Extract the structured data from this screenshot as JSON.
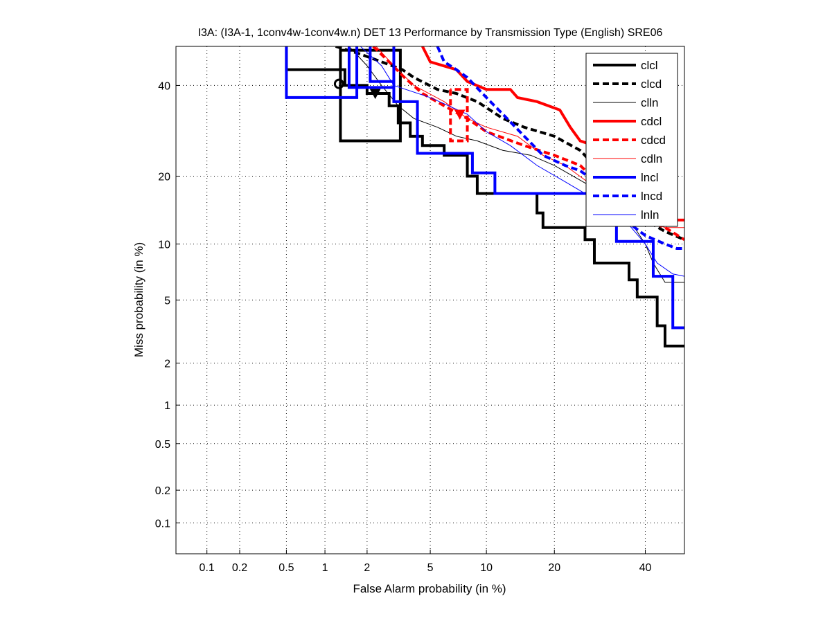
{
  "chart_data": {
    "type": "line",
    "scale": "normal-deviate (DET)",
    "title": "I3A: (I3A-1, 1conv4w-1conv4w.n) DET 13 Performance by Transmission Type (English) SRE06",
    "xlabel": "False Alarm probability (in %)",
    "ylabel": "Miss probability (in %)",
    "xlim": [
      0.05,
      50
    ],
    "ylim": [
      0.05,
      50
    ],
    "grid": true,
    "legend_position": "top-right",
    "xticks": [
      0.1,
      0.2,
      0.5,
      1,
      2,
      5,
      10,
      20,
      40
    ],
    "xtick_labels": [
      "0.1",
      "0.2",
      "0.5",
      "1",
      "2",
      "5",
      "10",
      "20",
      "40"
    ],
    "yticks": [
      0.1,
      0.2,
      0.5,
      1,
      2,
      5,
      10,
      20,
      40
    ],
    "ytick_labels": [
      "0.1",
      "0.2",
      "0.5",
      "1",
      "2",
      "5",
      "10",
      "20",
      "40"
    ],
    "series": [
      {
        "name": "clcl",
        "color": "#000000",
        "style": "solid",
        "weight": "thick",
        "segments": [
          [
            [
              0.5,
              50
            ],
            [
              0.5,
              44
            ],
            [
              1.4,
              44
            ],
            [
              1.4,
              40
            ],
            [
              2,
              40
            ],
            [
              2,
              38
            ],
            [
              2.8,
              38
            ],
            [
              2.8,
              35
            ],
            [
              3.2,
              35
            ],
            [
              3.2,
              31
            ],
            [
              3.8,
              31
            ],
            [
              3.8,
              28
            ],
            [
              4.5,
              28
            ],
            [
              4.5,
              26
            ],
            [
              6,
              26
            ],
            [
              6,
              24
            ],
            [
              8,
              24
            ],
            [
              8,
              20
            ],
            [
              9,
              20
            ],
            [
              9,
              17
            ],
            [
              17,
              17
            ],
            [
              17,
              14
            ],
            [
              18,
              14
            ],
            [
              18,
              12
            ],
            [
              26,
              12
            ],
            [
              26,
              10.5
            ],
            [
              28,
              10.5
            ],
            [
              28,
              8
            ],
            [
              36,
              8
            ],
            [
              36,
              6.5
            ],
            [
              38,
              6.5
            ],
            [
              38,
              5.2
            ],
            [
              43,
              5.2
            ],
            [
              43,
              3.5
            ],
            [
              45,
              3.5
            ],
            [
              45,
              2.6
            ],
            [
              50,
              2.6
            ]
          ],
          [
            [
              1.3,
              50
            ],
            [
              1.3,
              27
            ],
            [
              3.3,
              27
            ],
            [
              3.3,
              49
            ],
            [
              1.3,
              49
            ]
          ]
        ]
      },
      {
        "name": "clcd",
        "color": "#000000",
        "style": "dashed",
        "weight": "thick",
        "segments": [
          [
            [
              1.2,
              50
            ],
            [
              1.8,
              48
            ],
            [
              2.5,
              46
            ],
            [
              3.4,
              44
            ],
            [
              4,
              42
            ],
            [
              5.5,
              39
            ],
            [
              7,
              38
            ],
            [
              9,
              36
            ],
            [
              12,
              32
            ],
            [
              15,
              30
            ],
            [
              20,
              28
            ],
            [
              25,
              25
            ],
            [
              28,
              22
            ],
            [
              33,
              18
            ],
            [
              40,
              13
            ],
            [
              45,
              11.5
            ],
            [
              50,
              10.5
            ]
          ]
        ]
      },
      {
        "name": "clln",
        "color": "#000000",
        "style": "solid",
        "weight": "thin",
        "segments": [
          [
            [
              1.5,
              50
            ],
            [
              2,
              45
            ],
            [
              2.5,
              40
            ],
            [
              3.2,
              35
            ],
            [
              4,
              32
            ],
            [
              5.5,
              30
            ],
            [
              7,
              28
            ],
            [
              9,
              27
            ],
            [
              12,
              25
            ],
            [
              16,
              24
            ],
            [
              20,
              22
            ],
            [
              30,
              17
            ],
            [
              35,
              14
            ],
            [
              40,
              10
            ],
            [
              42,
              8
            ],
            [
              45,
              6.3
            ],
            [
              50,
              6.3
            ]
          ]
        ]
      },
      {
        "name": "cdcl",
        "color": "#ff0000",
        "style": "solid",
        "weight": "thick",
        "segments": [
          [
            [
              4.5,
              50
            ],
            [
              5,
              46
            ],
            [
              7,
              44
            ],
            [
              8,
              41
            ],
            [
              10,
              39
            ],
            [
              13,
              39
            ],
            [
              14,
              37
            ],
            [
              17,
              36
            ],
            [
              21,
              34
            ],
            [
              23,
              30
            ],
            [
              25,
              27
            ],
            [
              28,
              26
            ],
            [
              35,
              24
            ],
            [
              37,
              22
            ],
            [
              45,
              17
            ],
            [
              47,
              13
            ],
            [
              50,
              13
            ]
          ]
        ]
      },
      {
        "name": "cdcd",
        "color": "#ff0000",
        "style": "dashed",
        "weight": "thick",
        "segments": [
          [
            [
              2.2,
              50
            ],
            [
              2.8,
              46
            ],
            [
              3.5,
              42
            ],
            [
              4.5,
              38
            ],
            [
              6,
              35
            ],
            [
              8,
              32
            ],
            [
              10,
              29
            ],
            [
              15,
              26
            ],
            [
              20,
              24
            ],
            [
              25,
              22
            ],
            [
              30,
              18
            ],
            [
              40,
              13
            ],
            [
              45,
              12
            ],
            [
              50,
              10.5
            ]
          ],
          [
            [
              6.5,
              39
            ],
            [
              6.5,
              27
            ],
            [
              8,
              27
            ],
            [
              8,
              39
            ],
            [
              6.5,
              39
            ]
          ]
        ]
      },
      {
        "name": "cdln",
        "color": "#ff0000",
        "style": "solid",
        "weight": "thin",
        "segments": [
          [
            [
              2.3,
              50
            ],
            [
              3,
              45
            ],
            [
              4,
              40
            ],
            [
              6,
              36
            ],
            [
              8,
              32
            ],
            [
              10,
              30
            ],
            [
              14,
              28
            ],
            [
              18,
              24
            ],
            [
              22,
              22
            ],
            [
              30,
              17
            ],
            [
              40,
              13
            ],
            [
              45,
              12
            ],
            [
              50,
              12
            ]
          ]
        ]
      },
      {
        "name": "lncl",
        "color": "#0000ff",
        "style": "solid",
        "weight": "thick",
        "segments": [
          [
            [
              0.5,
              50
            ],
            [
              0.5,
              37
            ],
            [
              1.7,
              37
            ],
            [
              1.7,
              50
            ]
          ],
          [
            [
              1.5,
              50
            ],
            [
              1.5,
              39.5
            ],
            [
              3.0,
              39.5
            ],
            [
              3.0,
              50
            ]
          ],
          [
            [
              2.1,
              50
            ],
            [
              2.1,
              41
            ],
            [
              3.0,
              41
            ],
            [
              3.0,
              36
            ],
            [
              4.2,
              36
            ],
            [
              4.2,
              24.4
            ],
            [
              8.5,
              24.4
            ],
            [
              8.5,
              20.6
            ],
            [
              11,
              20.6
            ],
            [
              11,
              17
            ],
            [
              33,
              17
            ],
            [
              33,
              10.3
            ],
            [
              42,
              10.3
            ],
            [
              42,
              6.8
            ],
            [
              47,
              6.8
            ],
            [
              47,
              3.4
            ],
            [
              50,
              3.4
            ]
          ]
        ]
      },
      {
        "name": "lncd",
        "color": "#0000ff",
        "style": "dashed",
        "weight": "thick",
        "segments": [
          [
            [
              5.5,
              50
            ],
            [
              6,
              46
            ],
            [
              7,
              44
            ],
            [
              8,
              42
            ],
            [
              10,
              37
            ],
            [
              12,
              33
            ],
            [
              15,
              28
            ],
            [
              18,
              24
            ],
            [
              22,
              22
            ],
            [
              25,
              21
            ],
            [
              30,
              18
            ],
            [
              35,
              13
            ],
            [
              40,
              11
            ],
            [
              45,
              10
            ],
            [
              48,
              9.5
            ],
            [
              50,
              9.5
            ]
          ]
        ]
      },
      {
        "name": "lnln",
        "color": "#0000ff",
        "style": "solid",
        "weight": "thin",
        "segments": [
          [
            [
              1.8,
              50
            ],
            [
              2.5,
              45
            ],
            [
              3,
              40
            ],
            [
              5,
              37
            ],
            [
              8,
              33
            ],
            [
              10,
              29
            ],
            [
              13,
              26
            ],
            [
              17,
              22
            ],
            [
              22,
              19
            ],
            [
              26,
              17
            ],
            [
              35,
              13
            ],
            [
              40,
              10
            ],
            [
              43,
              8
            ],
            [
              47,
              7
            ],
            [
              50,
              6.8
            ]
          ]
        ]
      }
    ],
    "markers": [
      {
        "name": "clcl-min-dcf",
        "shape": "circle",
        "color": "#000000",
        "x": 1.27,
        "y": 40.4
      },
      {
        "name": "clcl-act-dcf",
        "shape": "triangle",
        "color": "#000000",
        "x": 2.27,
        "y": 38
      },
      {
        "name": "cdcd-act-dcf",
        "shape": "triangle",
        "color": "#ff0000",
        "x": 7.3,
        "y": 33
      }
    ]
  }
}
